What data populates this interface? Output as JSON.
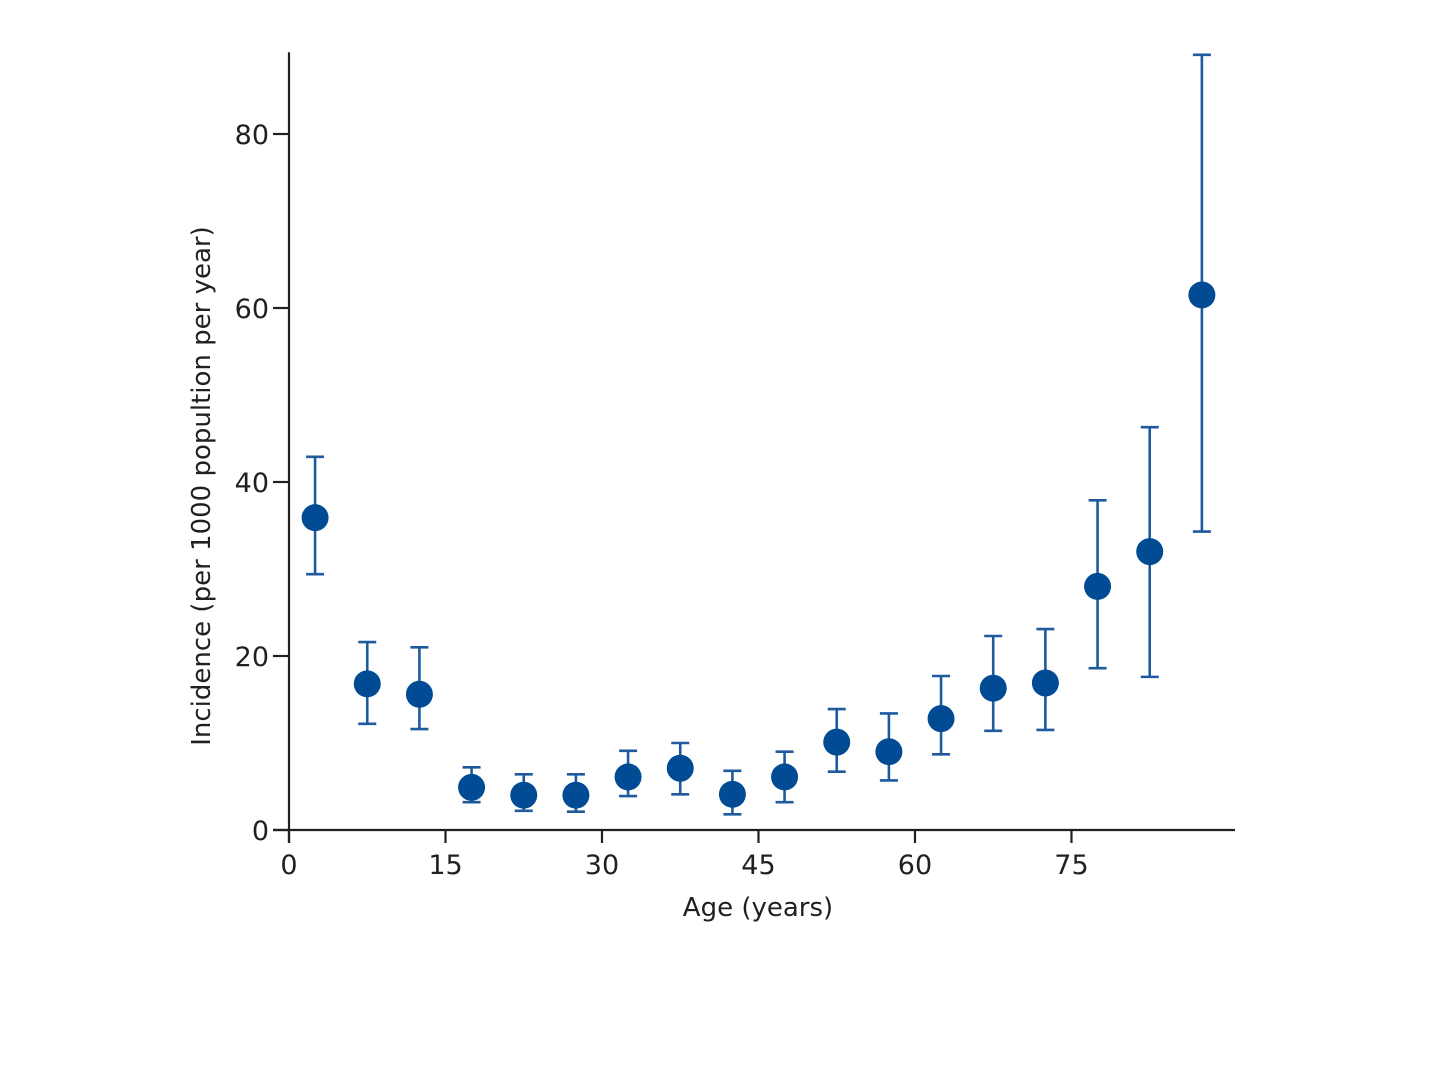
{
  "chart_data": {
    "type": "scatter",
    "title": "",
    "xlabel": "Age (years)",
    "ylabel": "Incidence (per 1000 popultion per year)",
    "xlim": [
      0,
      91
    ],
    "ylim": [
      0,
      89.4
    ],
    "xticks": [
      0,
      15,
      30,
      45,
      60,
      75
    ],
    "yticks": [
      0,
      20,
      40,
      60,
      80
    ],
    "xtick_labels": [
      "0",
      "15",
      "30",
      "45",
      "60",
      "75"
    ],
    "ytick_labels": [
      "0",
      "20",
      "40",
      "60",
      "80"
    ],
    "grid": false,
    "legend": null,
    "marker_color": "#004b93",
    "errorbar_color": "#1f5a9e",
    "axis_color": "#231f20",
    "series": [
      {
        "name": "Incidence",
        "x": [
          2.5,
          7.5,
          12.5,
          17.5,
          22.5,
          27.5,
          32.5,
          37.5,
          42.5,
          47.5,
          52.5,
          57.5,
          62.5,
          67.5,
          72.5,
          77.5,
          82.5,
          87.5
        ],
        "y": [
          35.9,
          16.8,
          15.6,
          4.9,
          4.0,
          4.0,
          6.1,
          7.1,
          4.1,
          6.1,
          10.1,
          9.0,
          12.8,
          16.3,
          16.9,
          28.0,
          32.0,
          61.5
        ],
        "upper": [
          42.9,
          21.6,
          21.0,
          7.2,
          6.4,
          6.4,
          9.1,
          10.0,
          6.8,
          9.0,
          13.9,
          13.4,
          17.7,
          22.3,
          23.1,
          37.9,
          46.3,
          89.1
        ],
        "lower": [
          29.4,
          12.2,
          11.6,
          3.2,
          2.2,
          2.1,
          3.9,
          4.1,
          1.8,
          3.2,
          6.7,
          5.7,
          8.7,
          11.4,
          11.5,
          18.6,
          17.6,
          34.3
        ]
      }
    ]
  }
}
